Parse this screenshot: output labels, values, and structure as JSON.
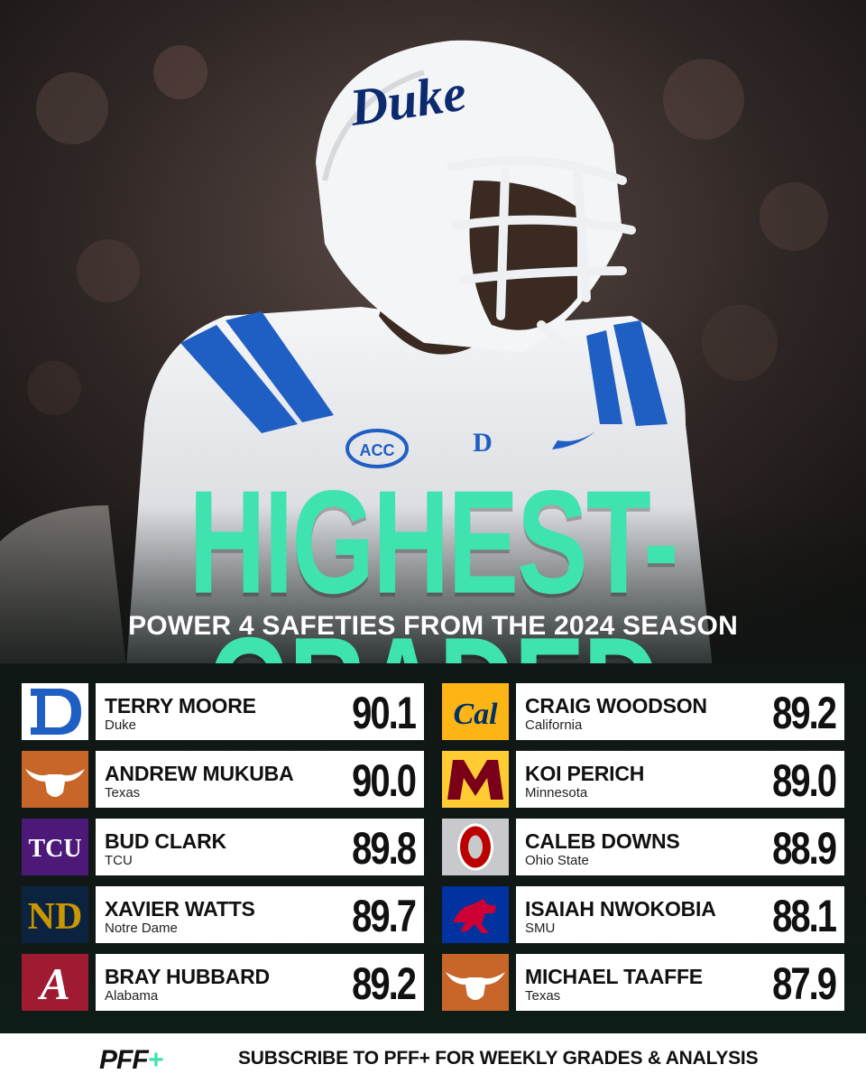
{
  "hero": {
    "helmet_text": "Duke",
    "headline": "HIGHEST-GRADED",
    "subheadline": "POWER 4 SAFETIES FROM THE 2024 SEASON"
  },
  "colors": {
    "accent": "#3fe3b0",
    "duke_blue": "#1f5fc4",
    "texas_orange": "#c8662a",
    "tcu_purple": "#4d1979",
    "notre_dame_navy": "#0c2340",
    "notre_dame_gold": "#c99700",
    "alabama_crimson": "#9e1b32",
    "cal_blue": "#003262",
    "cal_gold": "#fdb515",
    "minnesota_maroon": "#7a0019",
    "minnesota_gold": "#ffcc33",
    "ohio_state_scarlet": "#bb0000",
    "smu_red": "#cc0035",
    "smu_blue": "#0033a0"
  },
  "players_left": [
    {
      "name": "TERRY MOORE",
      "school": "Duke",
      "grade": "90.1",
      "logo": "duke-logo"
    },
    {
      "name": "ANDREW MUKUBA",
      "school": "Texas",
      "grade": "90.0",
      "logo": "texas-longhorn-logo"
    },
    {
      "name": "BUD CLARK",
      "school": "TCU",
      "grade": "89.8",
      "logo": "tcu-logo"
    },
    {
      "name": "XAVIER WATTS",
      "school": "Notre Dame",
      "grade": "89.7",
      "logo": "notre-dame-logo"
    },
    {
      "name": "BRAY HUBBARD",
      "school": "Alabama",
      "grade": "89.2",
      "logo": "alabama-logo"
    }
  ],
  "players_right": [
    {
      "name": "CRAIG WOODSON",
      "school": "California",
      "grade": "89.2",
      "logo": "california-logo"
    },
    {
      "name": "KOI PERICH",
      "school": "Minnesota",
      "grade": "89.0",
      "logo": "minnesota-logo"
    },
    {
      "name": "CALEB DOWNS",
      "school": "Ohio State",
      "grade": "88.9",
      "logo": "ohio-state-logo"
    },
    {
      "name": "ISAIAH NWOKOBIA",
      "school": "SMU",
      "grade": "88.1",
      "logo": "smu-logo"
    },
    {
      "name": "MICHAEL TAAFFE",
      "school": "Texas",
      "grade": "87.9",
      "logo": "texas-longhorn-logo"
    }
  ],
  "footer": {
    "brand": "PFF+",
    "cta": "SUBSCRIBE TO PFF+ FOR WEEKLY GRADES & ANALYSIS"
  }
}
